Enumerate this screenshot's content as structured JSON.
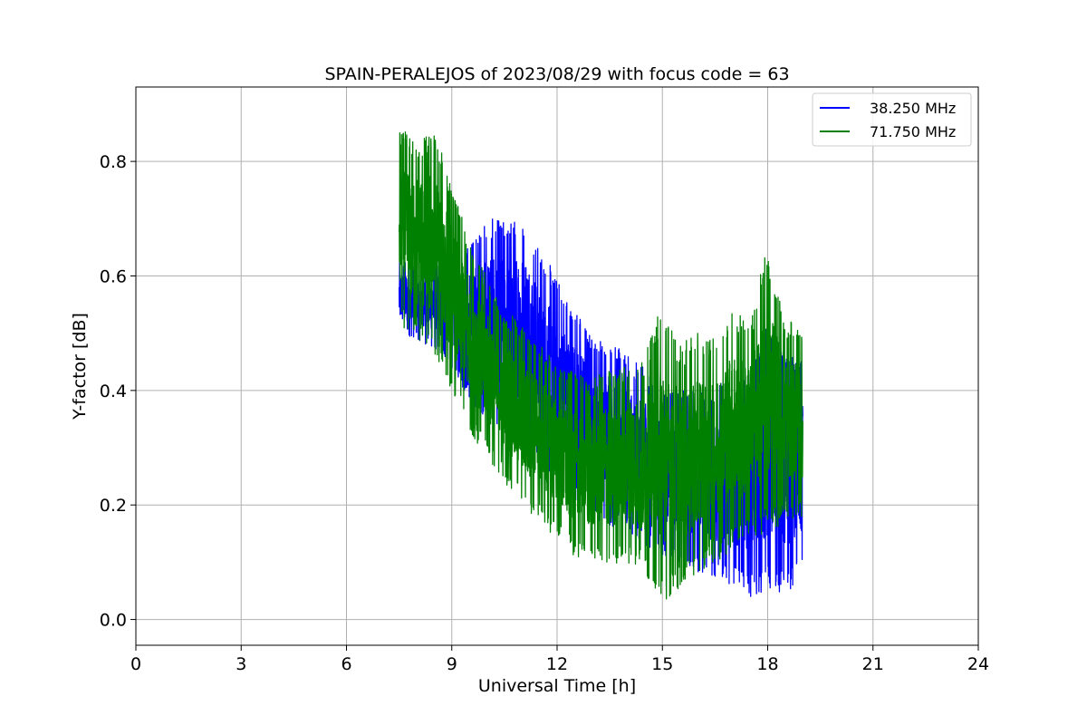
{
  "chart_data": {
    "type": "line",
    "title": "SPAIN-PERALEJOS of 2023/08/29 with focus code = 63",
    "xlabel": "Universal Time [h]",
    "ylabel": "Y-factor [dB]",
    "xlim": [
      0,
      24
    ],
    "ylim": [
      -0.045,
      0.93
    ],
    "xticks": [
      0,
      3,
      6,
      9,
      12,
      15,
      18,
      21,
      24
    ],
    "xtick_labels": [
      "0",
      "3",
      "6",
      "9",
      "12",
      "15",
      "18",
      "21",
      "24"
    ],
    "yticks": [
      0.0,
      0.2,
      0.4,
      0.6,
      0.8
    ],
    "ytick_labels": [
      "0.0",
      "0.2",
      "0.4",
      "0.6",
      "0.8"
    ],
    "grid": true,
    "legend_position": "top-right",
    "series": [
      {
        "name": "38.250 MHz",
        "color": "#0000ff",
        "x": [
          7.5,
          8.0,
          8.5,
          9.0,
          9.5,
          10.0,
          10.5,
          11.0,
          11.5,
          12.0,
          12.5,
          13.0,
          13.5,
          14.0,
          14.5,
          15.0,
          15.5,
          16.0,
          16.5,
          17.0,
          17.5,
          18.0,
          18.5,
          19.0
        ],
        "low": [
          0.5,
          0.49,
          0.47,
          0.44,
          0.38,
          0.35,
          0.33,
          0.3,
          0.27,
          0.24,
          0.21,
          0.18,
          0.16,
          0.15,
          0.13,
          0.11,
          0.1,
          0.08,
          0.07,
          0.06,
          0.04,
          0.05,
          0.04,
          0.08
        ],
        "high": [
          0.63,
          0.62,
          0.63,
          0.64,
          0.66,
          0.7,
          0.7,
          0.71,
          0.65,
          0.6,
          0.55,
          0.5,
          0.49,
          0.46,
          0.44,
          0.4,
          0.41,
          0.4,
          0.41,
          0.42,
          0.43,
          0.52,
          0.47,
          0.45
        ]
      },
      {
        "name": "71.750 MHz",
        "color": "#008000",
        "x": [
          7.5,
          8.0,
          8.5,
          9.0,
          9.5,
          10.0,
          10.5,
          11.0,
          11.5,
          12.0,
          12.5,
          13.0,
          13.5,
          14.0,
          14.5,
          15.0,
          15.5,
          16.0,
          16.5,
          17.0,
          17.5,
          18.0,
          18.5,
          19.0
        ],
        "low": [
          0.52,
          0.48,
          0.46,
          0.4,
          0.33,
          0.28,
          0.24,
          0.2,
          0.17,
          0.14,
          0.11,
          0.1,
          0.09,
          0.1,
          0.08,
          0.03,
          0.05,
          0.08,
          0.1,
          0.12,
          0.14,
          0.15,
          0.17,
          0.18
        ],
        "high": [
          0.86,
          0.84,
          0.86,
          0.76,
          0.66,
          0.6,
          0.54,
          0.52,
          0.48,
          0.45,
          0.43,
          0.42,
          0.44,
          0.45,
          0.46,
          0.56,
          0.48,
          0.5,
          0.49,
          0.55,
          0.52,
          0.66,
          0.53,
          0.5
        ]
      }
    ]
  }
}
